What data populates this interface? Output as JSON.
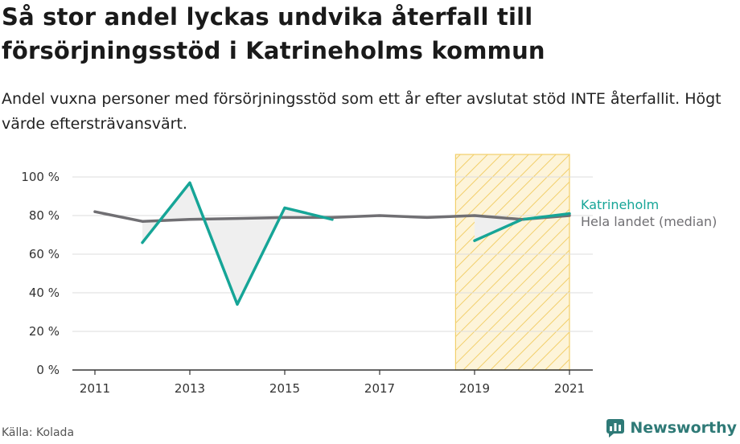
{
  "title": "Så stor andel lyckas undvika återfall till försörjningsstöd i Katrineholms kommun",
  "subtitle": "Andel vuxna personer med försörjningsstöd som ett år efter avslutat stöd INTE återfallit. Högt värde eftersträvansvärt.",
  "source": "Källa: Kolada",
  "brand": "Newsworthy",
  "colors": {
    "katrineholm": "#16a597",
    "median": "#706f73",
    "highlight_stroke": "#f2cf6b",
    "highlight_fill": "#fdf4d9"
  },
  "chart_data": {
    "type": "line",
    "x": [
      2011,
      2012,
      2013,
      2014,
      2015,
      2016,
      2017,
      2018,
      2019,
      2020,
      2021
    ],
    "xticks": [
      "2011",
      "2013",
      "2015",
      "2017",
      "2019",
      "2021"
    ],
    "yticks": [
      "0 %",
      "20 %",
      "40 %",
      "60 %",
      "80 %",
      "100 %"
    ],
    "ylim": [
      0,
      100
    ],
    "highlight_range": [
      2018.6,
      2021
    ],
    "series": [
      {
        "name": "Katrineholm",
        "color": "#16a597",
        "values": [
          null,
          66,
          97,
          34,
          84,
          78,
          null,
          null,
          67,
          78,
          81
        ]
      },
      {
        "name": "Hela landet (median)",
        "color": "#706f73",
        "values": [
          82,
          77,
          78,
          78.5,
          79,
          79,
          80,
          79,
          80,
          78,
          80
        ]
      }
    ]
  }
}
